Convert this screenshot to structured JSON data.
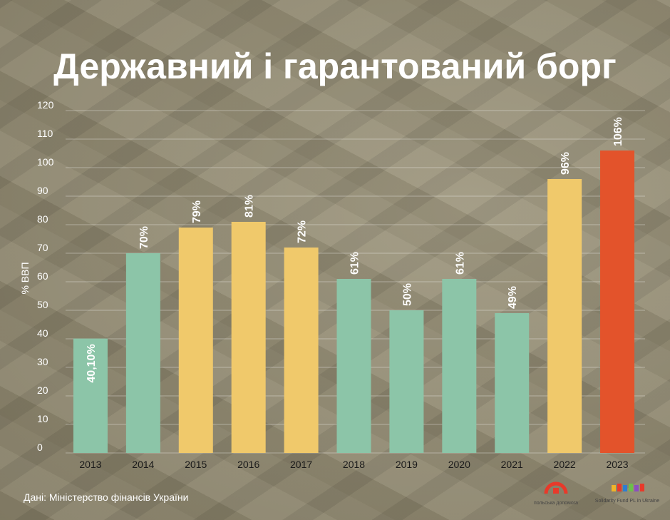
{
  "chart_data": {
    "type": "bar",
    "title": "Державний і гарантований борг",
    "ylabel": "% ВВП",
    "ylim": [
      0,
      120
    ],
    "yticks": [
      0,
      10,
      20,
      30,
      40,
      50,
      60,
      70,
      80,
      90,
      100,
      110,
      120
    ],
    "categories": [
      "2013",
      "2014",
      "2015",
      "2016",
      "2017",
      "2018",
      "2019",
      "2020",
      "2021",
      "2022",
      "2023"
    ],
    "values": [
      40.1,
      70,
      79,
      81,
      72,
      61,
      50,
      61,
      49,
      96,
      106
    ],
    "value_labels": [
      "40,10%",
      "70%",
      "79%",
      "81%",
      "72%",
      "61%",
      "50%",
      "61%",
      "49%",
      "96%",
      "106%"
    ],
    "bar_colors": [
      "#8cc5a8",
      "#8cc5a8",
      "#f0c96b",
      "#f0c96b",
      "#f0c96b",
      "#8cc5a8",
      "#8cc5a8",
      "#8cc5a8",
      "#8cc5a8",
      "#f0c96b",
      "#e3532b"
    ],
    "grid": true,
    "source": "Дані: Міністерство фінансів України"
  },
  "logos": {
    "left": {
      "name": "polska-dopomoha-logo",
      "text": "польська допомога",
      "color": "#e8392a"
    },
    "right": {
      "name": "solidarity-fund-logo",
      "text": "Solidarity Fund PL in Ukraine"
    }
  }
}
